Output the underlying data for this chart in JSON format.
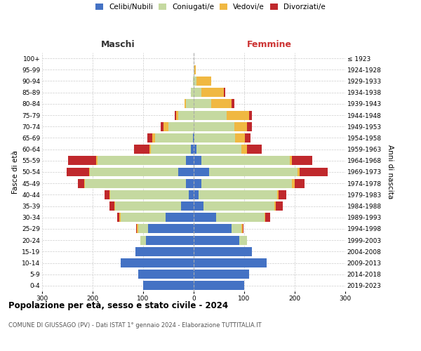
{
  "age_groups": [
    "0-4",
    "5-9",
    "10-14",
    "15-19",
    "20-24",
    "25-29",
    "30-34",
    "35-39",
    "40-44",
    "45-49",
    "50-54",
    "55-59",
    "60-64",
    "65-69",
    "70-74",
    "75-79",
    "80-84",
    "85-89",
    "90-94",
    "95-99",
    "100+"
  ],
  "birth_years": [
    "2019-2023",
    "2014-2018",
    "2009-2013",
    "2004-2008",
    "1999-2003",
    "1994-1998",
    "1989-1993",
    "1984-1988",
    "1979-1983",
    "1974-1978",
    "1969-1973",
    "1964-1968",
    "1959-1963",
    "1954-1958",
    "1949-1953",
    "1944-1948",
    "1939-1943",
    "1934-1938",
    "1929-1933",
    "1924-1928",
    "≤ 1923"
  ],
  "male": {
    "celibi": [
      100,
      110,
      145,
      115,
      95,
      90,
      55,
      25,
      10,
      15,
      30,
      15,
      5,
      2,
      0,
      0,
      0,
      0,
      0,
      0,
      0
    ],
    "coniugati": [
      0,
      0,
      0,
      0,
      10,
      20,
      90,
      130,
      155,
      200,
      175,
      175,
      80,
      75,
      50,
      30,
      15,
      5,
      2,
      0,
      0
    ],
    "vedovi": [
      0,
      0,
      0,
      0,
      0,
      2,
      2,
      2,
      2,
      2,
      2,
      3,
      3,
      5,
      10,
      5,
      3,
      0,
      0,
      0,
      0
    ],
    "divorziati": [
      0,
      0,
      0,
      0,
      0,
      2,
      5,
      10,
      10,
      12,
      45,
      55,
      30,
      10,
      5,
      2,
      0,
      0,
      0,
      0,
      0
    ]
  },
  "female": {
    "nubili": [
      100,
      110,
      145,
      115,
      90,
      75,
      45,
      20,
      10,
      15,
      30,
      15,
      5,
      2,
      0,
      0,
      0,
      0,
      0,
      0,
      0
    ],
    "coniugate": [
      0,
      0,
      0,
      0,
      15,
      20,
      95,
      140,
      155,
      180,
      175,
      175,
      90,
      80,
      80,
      65,
      35,
      15,
      5,
      2,
      0
    ],
    "vedove": [
      0,
      0,
      0,
      0,
      0,
      2,
      2,
      2,
      3,
      5,
      5,
      5,
      10,
      20,
      25,
      45,
      40,
      45,
      30,
      2,
      0
    ],
    "divorziate": [
      0,
      0,
      0,
      0,
      0,
      2,
      10,
      15,
      15,
      20,
      55,
      40,
      30,
      10,
      10,
      5,
      5,
      2,
      0,
      0,
      0
    ]
  },
  "xlim": 300,
  "colors": {
    "celibi": "#4472c4",
    "coniugati": "#c5d9a0",
    "vedovi": "#f0b842",
    "divorziati": "#c0282c"
  },
  "title_main": "Popolazione per età, sesso e stato civile - 2024",
  "title_sub": "COMUNE DI GIUSSAGO (PV) - Dati ISTAT 1° gennaio 2024 - Elaborazione TUTTITALIA.IT",
  "ylabel_left": "Fasce di età",
  "ylabel_right": "Anni di nascita",
  "xlabel_left": "Maschi",
  "xlabel_right": "Femmine"
}
